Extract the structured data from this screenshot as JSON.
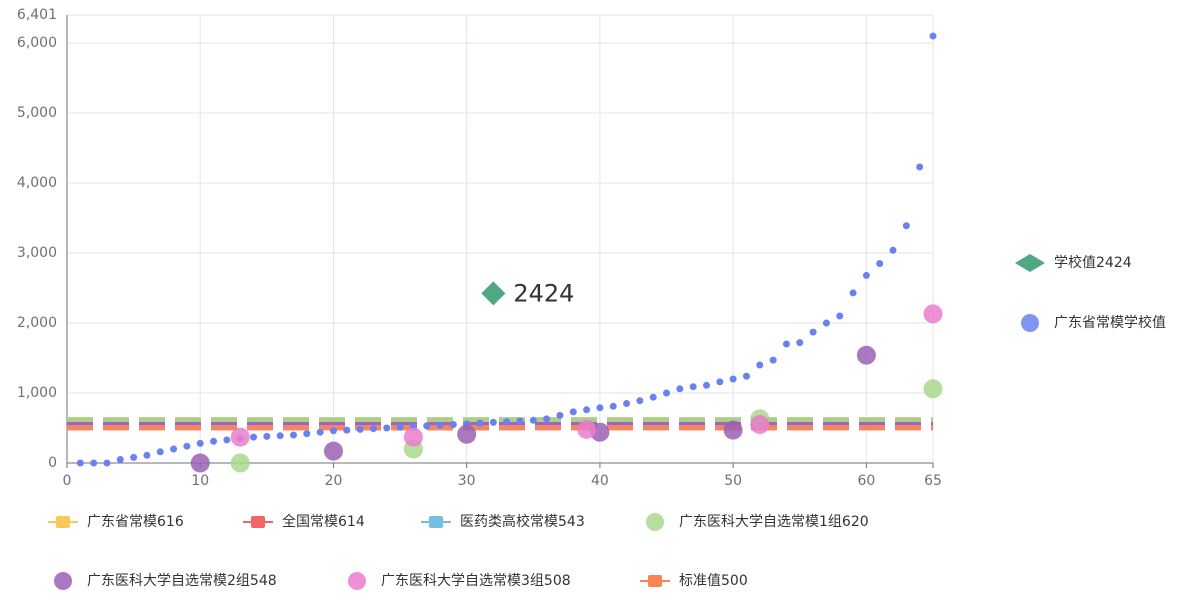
{
  "chart_data": {
    "type": "scatter",
    "xlim": [
      0,
      65
    ],
    "xticks": [
      0,
      10,
      20,
      30,
      40,
      50,
      60,
      65
    ],
    "ylim": [
      0,
      6401
    ],
    "yticks": [
      0,
      {
        "value": 1000,
        "label": "1,000"
      },
      {
        "value": 2000,
        "label": "2,000"
      },
      {
        "value": 3000,
        "label": "3,000"
      },
      {
        "value": 4000,
        "label": "4,000"
      },
      {
        "value": 5000,
        "label": "5,000"
      },
      {
        "value": 6000,
        "label": "6,000"
      },
      {
        "value": 6401,
        "label": "6,401"
      }
    ],
    "grid": true,
    "series": [
      {
        "name": "学校值2424",
        "color": "#4fa882",
        "marker": "diamond",
        "x": [
          32
        ],
        "values": [
          2424
        ]
      },
      {
        "name": "广东省常模学校值",
        "color": "#6a82ef",
        "marker": "circle",
        "x": [
          1,
          2,
          3,
          4,
          5,
          6,
          7,
          8,
          9,
          10,
          11,
          12,
          13,
          14,
          15,
          16,
          17,
          18,
          19,
          20,
          21,
          22,
          23,
          24,
          25,
          26,
          27,
          28,
          29,
          30,
          31,
          32,
          33,
          34,
          35,
          36,
          37,
          38,
          39,
          40,
          41,
          42,
          43,
          44,
          45,
          46,
          47,
          48,
          49,
          50,
          51,
          52,
          53,
          54,
          55,
          56,
          57,
          58,
          59,
          60,
          61,
          62,
          63,
          64,
          65
        ],
        "values": [
          0,
          0,
          0,
          50,
          80,
          110,
          160,
          200,
          240,
          280,
          310,
          330,
          350,
          370,
          380,
          390,
          400,
          420,
          440,
          460,
          470,
          480,
          490,
          500,
          510,
          520,
          530,
          540,
          550,
          560,
          570,
          580,
          590,
          600,
          610,
          630,
          680,
          730,
          760,
          790,
          810,
          850,
          890,
          940,
          1000,
          1060,
          1090,
          1110,
          1160,
          1200,
          1240,
          1400,
          1470,
          1700,
          1720,
          1870,
          2000,
          2100,
          2430,
          2680,
          2850,
          3040,
          3390,
          4230,
          6100
        ]
      },
      {
        "name": "广东省常模616",
        "color": "#fac858",
        "line": 616
      },
      {
        "name": "全国常模614",
        "color": "#ee6666",
        "line": 614
      },
      {
        "name": "医药类高校常模543",
        "color": "#73c0de",
        "line": 543
      },
      {
        "name": "广东医科大学自选常模1组620",
        "color": "#a8d88e",
        "line": 620,
        "x": [
          13,
          26,
          52,
          65
        ],
        "values": [
          0,
          200,
          630,
          1060
        ]
      },
      {
        "name": "广东医科大学自选常模2组548",
        "color": "#9a60b4",
        "line": 548,
        "x": [
          10,
          20,
          30,
          40,
          50,
          60
        ],
        "values": [
          0,
          170,
          410,
          440,
          470,
          1540
        ]
      },
      {
        "name": "广东医科大学自选常模3组508",
        "color": "#ea7ccc",
        "line": 508,
        "x": [
          13,
          26,
          39,
          52,
          65
        ],
        "values": [
          370,
          370,
          480,
          550,
          2130
        ]
      },
      {
        "name": "标准值500",
        "color": "#fc8452",
        "line": 500
      }
    ]
  }
}
